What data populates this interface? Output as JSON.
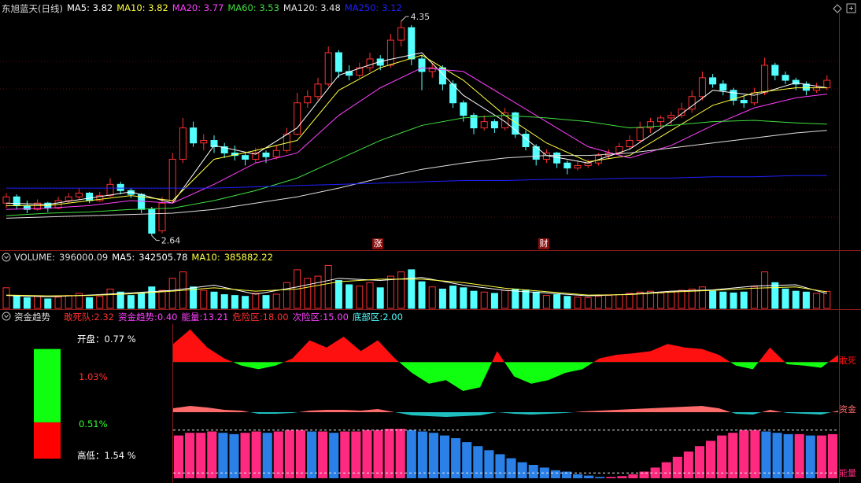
{
  "chart_data": [
    {
      "type": "candlestick",
      "title": "东旭蓝天(日线)",
      "ylim": [
        2.55,
        4.42
      ],
      "up_color": "#ff3030",
      "down_color": "#54ffff",
      "candles": [
        [
          2.9,
          2.98,
          2.86,
          2.95
        ],
        [
          2.95,
          2.97,
          2.85,
          2.88
        ],
        [
          2.88,
          2.92,
          2.82,
          2.85
        ],
        [
          2.85,
          2.93,
          2.84,
          2.9
        ],
        [
          2.9,
          2.91,
          2.83,
          2.86
        ],
        [
          2.86,
          2.95,
          2.85,
          2.92
        ],
        [
          2.92,
          2.98,
          2.9,
          2.95
        ],
        [
          2.95,
          3.02,
          2.93,
          2.98
        ],
        [
          2.98,
          2.99,
          2.9,
          2.92
        ],
        [
          2.92,
          2.99,
          2.91,
          2.96
        ],
        [
          2.96,
          3.1,
          2.95,
          3.05
        ],
        [
          3.05,
          3.07,
          2.97,
          3.0
        ],
        [
          3.0,
          3.02,
          2.94,
          2.97
        ],
        [
          2.97,
          2.98,
          2.82,
          2.85
        ],
        [
          2.85,
          2.87,
          2.64,
          2.66
        ],
        [
          2.68,
          2.95,
          2.66,
          2.9
        ],
        [
          2.92,
          3.3,
          2.9,
          3.25
        ],
        [
          3.25,
          3.58,
          3.22,
          3.5
        ],
        [
          3.5,
          3.55,
          3.35,
          3.38
        ],
        [
          3.38,
          3.45,
          3.32,
          3.4
        ],
        [
          3.4,
          3.44,
          3.3,
          3.35
        ],
        [
          3.35,
          3.38,
          3.26,
          3.3
        ],
        [
          3.3,
          3.36,
          3.24,
          3.28
        ],
        [
          3.28,
          3.3,
          3.2,
          3.25
        ],
        [
          3.25,
          3.34,
          3.22,
          3.3
        ],
        [
          3.3,
          3.32,
          3.22,
          3.27
        ],
        [
          3.27,
          3.36,
          3.25,
          3.32
        ],
        [
          3.32,
          3.5,
          3.3,
          3.45
        ],
        [
          3.45,
          3.78,
          3.44,
          3.7
        ],
        [
          3.7,
          3.8,
          3.66,
          3.75
        ],
        [
          3.75,
          3.9,
          3.72,
          3.85
        ],
        [
          3.85,
          4.15,
          3.83,
          4.1
        ],
        [
          4.1,
          4.12,
          3.9,
          3.95
        ],
        [
          3.95,
          4.0,
          3.88,
          3.92
        ],
        [
          3.92,
          4.02,
          3.9,
          3.98
        ],
        [
          3.98,
          4.1,
          3.95,
          4.05
        ],
        [
          4.05,
          4.08,
          3.96,
          4.0
        ],
        [
          4.0,
          4.25,
          3.98,
          4.2
        ],
        [
          4.2,
          4.35,
          4.15,
          4.3
        ],
        [
          4.3,
          4.32,
          4.0,
          4.05
        ],
        [
          4.05,
          4.08,
          3.8,
          3.95
        ],
        [
          3.95,
          4.02,
          3.9,
          3.98
        ],
        [
          3.98,
          4.0,
          3.8,
          3.85
        ],
        [
          3.85,
          3.88,
          3.66,
          3.7
        ],
        [
          3.7,
          3.72,
          3.55,
          3.6
        ],
        [
          3.6,
          3.62,
          3.45,
          3.5
        ],
        [
          3.5,
          3.6,
          3.48,
          3.55
        ],
        [
          3.55,
          3.57,
          3.46,
          3.5
        ],
        [
          3.5,
          3.66,
          3.48,
          3.62
        ],
        [
          3.62,
          3.63,
          3.42,
          3.45
        ],
        [
          3.45,
          3.48,
          3.32,
          3.35
        ],
        [
          3.35,
          3.37,
          3.2,
          3.25
        ],
        [
          3.25,
          3.33,
          3.22,
          3.3
        ],
        [
          3.3,
          3.31,
          3.18,
          3.22
        ],
        [
          3.22,
          3.24,
          3.13,
          3.18
        ],
        [
          3.18,
          3.24,
          3.16,
          3.2
        ],
        [
          3.2,
          3.25,
          3.18,
          3.22
        ],
        [
          3.22,
          3.3,
          3.2,
          3.28
        ],
        [
          3.28,
          3.33,
          3.25,
          3.3
        ],
        [
          3.3,
          3.38,
          3.28,
          3.35
        ],
        [
          3.35,
          3.44,
          3.33,
          3.4
        ],
        [
          3.4,
          3.55,
          3.38,
          3.5
        ],
        [
          3.5,
          3.58,
          3.46,
          3.55
        ],
        [
          3.55,
          3.6,
          3.5,
          3.58
        ],
        [
          3.58,
          3.63,
          3.52,
          3.6
        ],
        [
          3.6,
          3.7,
          3.58,
          3.65
        ],
        [
          3.65,
          3.8,
          3.62,
          3.75
        ],
        [
          3.75,
          3.95,
          3.72,
          3.9
        ],
        [
          3.9,
          3.93,
          3.82,
          3.85
        ],
        [
          3.85,
          3.88,
          3.76,
          3.8
        ],
        [
          3.8,
          3.82,
          3.68,
          3.72
        ],
        [
          3.72,
          3.76,
          3.66,
          3.7
        ],
        [
          3.7,
          3.82,
          3.68,
          3.78
        ],
        [
          3.78,
          4.06,
          3.76,
          4.0
        ],
        [
          4.0,
          4.02,
          3.88,
          3.92
        ],
        [
          3.92,
          3.95,
          3.85,
          3.88
        ],
        [
          3.88,
          3.9,
          3.8,
          3.85
        ],
        [
          3.85,
          3.87,
          3.76,
          3.8
        ],
        [
          3.8,
          3.86,
          3.78,
          3.82
        ],
        [
          3.82,
          3.92,
          3.8,
          3.88
        ]
      ],
      "high_label": 4.35,
      "low_label": 2.64,
      "events": [
        "涨",
        "财"
      ],
      "ma": {
        "x": [
          0,
          4,
          8,
          12,
          16,
          20,
          24,
          28,
          32,
          36,
          40,
          44,
          48,
          52,
          56,
          60,
          64,
          68,
          72,
          76,
          79
        ],
        "series": [
          {
            "name": "MA5:",
            "last": 3.82,
            "color": "#ffffff",
            "values": [
              2.9,
              2.89,
              2.94,
              2.99,
              2.9,
              3.36,
              3.29,
              3.5,
              3.92,
              4.03,
              4.1,
              3.76,
              3.55,
              3.28,
              3.22,
              3.33,
              3.55,
              3.8,
              3.76,
              3.86,
              3.82
            ]
          },
          {
            "name": "MA10:",
            "last": 3.82,
            "color": "#ffff40",
            "values": [
              2.88,
              2.88,
              2.92,
              2.96,
              2.92,
              3.25,
              3.32,
              3.4,
              3.8,
              3.98,
              4.08,
              3.88,
              3.6,
              3.38,
              3.23,
              3.28,
              3.48,
              3.68,
              3.78,
              3.82,
              3.82
            ]
          },
          {
            "name": "MA20:",
            "last": 3.77,
            "color": "#ff40ff",
            "values": [
              2.85,
              2.86,
              2.88,
              2.92,
              2.9,
              3.05,
              3.22,
              3.3,
              3.6,
              3.82,
              3.98,
              3.95,
              3.75,
              3.55,
              3.35,
              3.26,
              3.36,
              3.52,
              3.66,
              3.74,
              3.77
            ]
          },
          {
            "name": "MA60:",
            "last": 3.53,
            "color": "#40e040",
            "values": [
              2.8,
              2.82,
              2.83,
              2.85,
              2.86,
              2.92,
              3.0,
              3.1,
              3.25,
              3.4,
              3.52,
              3.58,
              3.6,
              3.58,
              3.55,
              3.5,
              3.52,
              3.55,
              3.56,
              3.54,
              3.53
            ]
          },
          {
            "name": "MA120:",
            "last": 3.48,
            "color": "#e0e0e0",
            "values": [
              2.78,
              2.79,
              2.8,
              2.81,
              2.82,
              2.85,
              2.9,
              2.95,
              3.02,
              3.1,
              3.17,
              3.22,
              3.26,
              3.28,
              3.28,
              3.3,
              3.34,
              3.38,
              3.42,
              3.46,
              3.48
            ]
          },
          {
            "name": "MA250:",
            "last": 3.12,
            "color": "#2020ff",
            "values": [
              3.02,
              3.02,
              3.02,
              3.02,
              3.02,
              3.02,
              3.03,
              3.04,
              3.05,
              3.06,
              3.07,
              3.08,
              3.08,
              3.09,
              3.09,
              3.1,
              3.1,
              3.11,
              3.11,
              3.12,
              3.12
            ]
          }
        ]
      }
    },
    {
      "type": "bar",
      "name": "VOLUME:",
      "last": 396000.09,
      "ylim": [
        0,
        1100000
      ],
      "values": [
        480000,
        300000,
        250000,
        280000,
        220000,
        260000,
        300000,
        350000,
        250000,
        280000,
        450000,
        380000,
        300000,
        350000,
        500000,
        420000,
        700000,
        850000,
        500000,
        420000,
        380000,
        320000,
        300000,
        280000,
        350000,
        300000,
        330000,
        600000,
        900000,
        700000,
        750000,
        1000000,
        650000,
        550000,
        520000,
        600000,
        480000,
        750000,
        850000,
        900000,
        620000,
        500000,
        450000,
        520000,
        480000,
        400000,
        380000,
        350000,
        420000,
        450000,
        430000,
        380000,
        300000,
        320000,
        280000,
        260000,
        250000,
        280000,
        300000,
        320000,
        350000,
        380000,
        400000,
        360000,
        380000,
        420000,
        450000,
        500000,
        400000,
        380000,
        360000,
        380000,
        500000,
        850000,
        600000,
        450000,
        400000,
        380000,
        350000,
        396000
      ],
      "ma": {
        "x": [
          0,
          4,
          8,
          12,
          16,
          20,
          24,
          28,
          32,
          36,
          40,
          44,
          48,
          52,
          56,
          60,
          64,
          68,
          72,
          76,
          79
        ],
        "series": [
          {
            "name": "MA5:",
            "last": 342505.78,
            "color": "#ffffff",
            "values": [
              300000,
              270000,
              310000,
              360000,
              420000,
              540000,
              330000,
              500000,
              700000,
              650000,
              720000,
              540000,
              420000,
              360000,
              290000,
              330000,
              400000,
              430000,
              520000,
              550000,
              342505.78
            ]
          },
          {
            "name": "MA10:",
            "last": 385882.22,
            "color": "#ffff40",
            "values": [
              310000,
              290000,
              300000,
              340000,
              400000,
              480000,
              400000,
              450000,
              620000,
              680000,
              680000,
              600000,
              470000,
              390000,
              310000,
              320000,
              380000,
              420000,
              470000,
              500000,
              385882.22
            ]
          }
        ]
      }
    },
    {
      "type": "indicator",
      "title": "资金趋势",
      "header_items": [
        {
          "name": "敢死队:",
          "color": "#ff3030",
          "value": 2.32
        },
        {
          "name": "资金趋势:",
          "color": "#ff40ff",
          "value": {
            "value": 0.4,
            "label": "0.40"
          }
        },
        {
          "name": "能量:",
          "color": "#ff40ff",
          "value": 13.21
        },
        {
          "name": "危险区:",
          "color": "#ff3030",
          "value": {
            "value": 18,
            "label": "18.00"
          }
        },
        {
          "name": "次险区:",
          "color": "#ff40ff",
          "value": {
            "value": 15,
            "label": "15.00"
          }
        },
        {
          "name": "底部区:",
          "color": "#54ffff",
          "value": {
            "value": 2,
            "label": "2.00"
          }
        }
      ],
      "gsd": {
        "name": "敢死",
        "ylim": [
          -40,
          60
        ],
        "colors": [
          "#ff1010",
          "#10ff10"
        ],
        "values": [
          25,
          45,
          20,
          5,
          -5,
          -10,
          -5,
          5,
          30,
          20,
          35,
          15,
          30,
          5,
          -15,
          -30,
          -25,
          -40,
          -35,
          15,
          -20,
          -30,
          -25,
          -15,
          -10,
          5,
          10,
          12,
          15,
          25,
          20,
          18,
          10,
          -5,
          -10,
          20,
          -3,
          -5,
          -8,
          10
        ]
      },
      "zj": {
        "name": "资金",
        "ylim": [
          -20,
          20
        ],
        "colors": [
          "#ff6a6a",
          "#20c0c0"
        ],
        "values": [
          5,
          8,
          6,
          3,
          2,
          -2,
          -2,
          -1,
          2,
          3,
          3,
          2,
          4,
          0,
          -4,
          -5,
          -6,
          -5,
          -4,
          0,
          -2,
          -3,
          -2,
          -1,
          1,
          2,
          3,
          4,
          5,
          6,
          7,
          8,
          5,
          -2,
          -3,
          3,
          -1,
          -2,
          -3,
          2
        ]
      },
      "energy": {
        "name": "能量",
        "ylim": [
          0,
          20
        ],
        "colors": [
          "#ff2a80",
          "#2a80e6"
        ],
        "values": [
          16,
          17,
          17,
          17.5,
          17,
          16.5,
          17,
          17.5,
          17,
          17.5,
          18,
          18,
          17.5,
          17.5,
          17,
          17.5,
          17.5,
          18,
          18,
          18.5,
          18.5,
          18,
          17.5,
          17,
          16,
          15,
          13.5,
          12,
          10.5,
          9,
          7.5,
          6,
          5,
          4,
          3,
          2.5,
          1.5,
          1,
          0.5,
          0.5,
          0.8,
          1.5,
          2.5,
          4,
          6,
          8,
          10,
          12,
          14,
          16,
          17,
          18,
          18,
          17.5,
          17,
          16.5,
          16.5,
          16,
          16,
          16.5
        ]
      },
      "box": {
        "open_name": "开盘：",
        "open": {
          "value": 0.77,
          "label": "0.77 %"
        },
        "up": {
          "value": 1.03,
          "label": "1.03%"
        },
        "down": {
          "value": 0.51,
          "label": "0.51%"
        },
        "range_name": "高低：",
        "range": {
          "value": 1.54,
          "label": "1.54 %"
        },
        "colors": [
          "#10ff10",
          "#ff0000"
        ]
      }
    }
  ]
}
